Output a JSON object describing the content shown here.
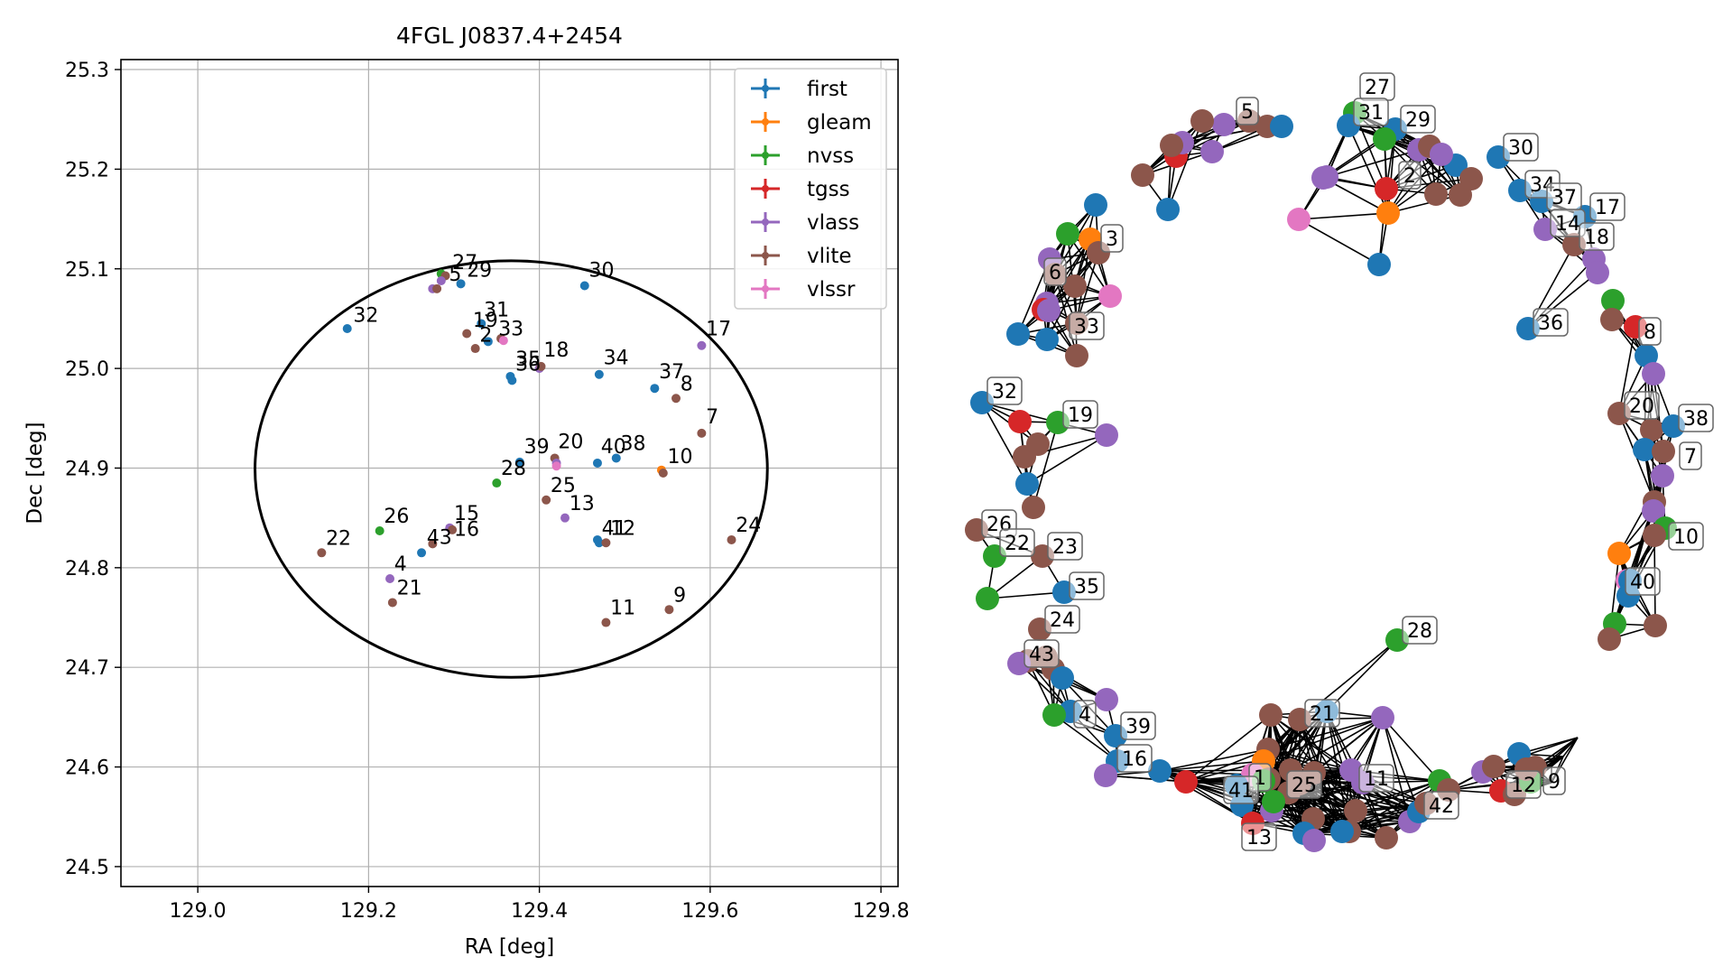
{
  "chart_data": [
    {
      "type": "scatter",
      "title": "4FGL J0837.4+2454",
      "xlabel": "RA [deg]",
      "ylabel": "Dec [deg]",
      "xlim": [
        128.91,
        129.82
      ],
      "ylim": [
        24.48,
        25.31
      ],
      "xticks": [
        129.0,
        129.2,
        129.4,
        129.6,
        129.8
      ],
      "xtick_labels": [
        "129.0",
        "129.2",
        "129.4",
        "129.6",
        "129.8"
      ],
      "yticks": [
        24.5,
        24.6,
        24.7,
        24.8,
        24.9,
        25.0,
        25.1,
        25.2,
        25.3
      ],
      "ytick_labels": [
        "24.5",
        "24.6",
        "24.7",
        "24.8",
        "24.9",
        "25.0",
        "25.1",
        "25.2",
        "25.3"
      ],
      "grid": true,
      "legend_position": "top-right",
      "ellipse": {
        "center": [
          129.367,
          24.899
        ],
        "ra_semi_axis": 0.3,
        "dec_semi_axis": 0.209
      },
      "series": [
        {
          "name": "first",
          "color": "#1f77b4"
        },
        {
          "name": "gleam",
          "color": "#ff7f0e"
        },
        {
          "name": "nvss",
          "color": "#2ca02c"
        },
        {
          "name": "tgss",
          "color": "#d62728"
        },
        {
          "name": "vlass",
          "color": "#9467bd"
        },
        {
          "name": "vlite",
          "color": "#8c564b"
        },
        {
          "name": "vlssr",
          "color": "#e377c2"
        }
      ],
      "points": [
        {
          "x": 129.285,
          "y": 25.095,
          "s": "nvss"
        },
        {
          "x": 129.29,
          "y": 25.093,
          "s": "vlite"
        },
        {
          "x": 129.285,
          "y": 25.088,
          "s": "vlass"
        },
        {
          "x": 129.275,
          "y": 25.08,
          "s": "vlass"
        },
        {
          "x": 129.28,
          "y": 25.08,
          "s": "vlite"
        },
        {
          "x": 129.308,
          "y": 25.085,
          "s": "first"
        },
        {
          "x": 129.175,
          "y": 25.04,
          "s": "first"
        },
        {
          "x": 129.453,
          "y": 25.083,
          "s": "first"
        },
        {
          "x": 129.315,
          "y": 25.035,
          "s": "vlite"
        },
        {
          "x": 129.332,
          "y": 25.045,
          "s": "first"
        },
        {
          "x": 129.34,
          "y": 25.027,
          "s": "first"
        },
        {
          "x": 129.325,
          "y": 25.02,
          "s": "vlite"
        },
        {
          "x": 129.355,
          "y": 25.03,
          "s": "vlite"
        },
        {
          "x": 129.358,
          "y": 25.028,
          "s": "vlssr"
        },
        {
          "x": 129.4,
          "y": 25.0,
          "s": "vlass"
        },
        {
          "x": 129.402,
          "y": 25.002,
          "s": "vlite"
        },
        {
          "x": 129.366,
          "y": 24.992,
          "s": "first"
        },
        {
          "x": 129.368,
          "y": 24.988,
          "s": "first"
        },
        {
          "x": 129.47,
          "y": 24.994,
          "s": "first"
        },
        {
          "x": 129.59,
          "y": 25.023,
          "s": "vlass"
        },
        {
          "x": 129.535,
          "y": 24.98,
          "s": "first"
        },
        {
          "x": 129.56,
          "y": 24.97,
          "s": "vlite"
        },
        {
          "x": 129.59,
          "y": 24.935,
          "s": "vlite"
        },
        {
          "x": 129.377,
          "y": 24.906,
          "s": "first"
        },
        {
          "x": 129.418,
          "y": 24.91,
          "s": "vlite"
        },
        {
          "x": 129.42,
          "y": 24.905,
          "s": "vlass"
        },
        {
          "x": 129.42,
          "y": 24.902,
          "s": "vlssr"
        },
        {
          "x": 129.468,
          "y": 24.905,
          "s": "first"
        },
        {
          "x": 129.49,
          "y": 24.91,
          "s": "first"
        },
        {
          "x": 129.543,
          "y": 24.898,
          "s": "gleam"
        },
        {
          "x": 129.545,
          "y": 24.895,
          "s": "vlite"
        },
        {
          "x": 129.35,
          "y": 24.885,
          "s": "nvss"
        },
        {
          "x": 129.408,
          "y": 24.868,
          "s": "vlite"
        },
        {
          "x": 129.43,
          "y": 24.85,
          "s": "vlass"
        },
        {
          "x": 129.213,
          "y": 24.837,
          "s": "nvss"
        },
        {
          "x": 129.295,
          "y": 24.84,
          "s": "vlass"
        },
        {
          "x": 129.298,
          "y": 24.838,
          "s": "vlite"
        },
        {
          "x": 129.275,
          "y": 24.824,
          "s": "vlite"
        },
        {
          "x": 129.262,
          "y": 24.815,
          "s": "first"
        },
        {
          "x": 129.145,
          "y": 24.815,
          "s": "vlite"
        },
        {
          "x": 129.225,
          "y": 24.789,
          "s": "vlass"
        },
        {
          "x": 129.228,
          "y": 24.765,
          "s": "vlite"
        },
        {
          "x": 129.468,
          "y": 24.828,
          "s": "first"
        },
        {
          "x": 129.47,
          "y": 24.825,
          "s": "first"
        },
        {
          "x": 129.478,
          "y": 24.825,
          "s": "vlite"
        },
        {
          "x": 129.625,
          "y": 24.828,
          "s": "vlite"
        },
        {
          "x": 129.478,
          "y": 24.745,
          "s": "vlite"
        },
        {
          "x": 129.552,
          "y": 24.758,
          "s": "vlite"
        }
      ],
      "labels": [
        {
          "text": "27",
          "x": 129.298,
          "y": 25.1
        },
        {
          "text": "5",
          "x": 129.294,
          "y": 25.088
        },
        {
          "text": "29",
          "x": 129.315,
          "y": 25.092
        },
        {
          "text": "30",
          "x": 129.458,
          "y": 25.092
        },
        {
          "text": "32",
          "x": 129.182,
          "y": 25.047
        },
        {
          "text": "31",
          "x": 129.335,
          "y": 25.052
        },
        {
          "text": "19",
          "x": 129.322,
          "y": 25.042
        },
        {
          "text": "33",
          "x": 129.352,
          "y": 25.033
        },
        {
          "text": "2",
          "x": 129.33,
          "y": 25.027
        },
        {
          "text": "18",
          "x": 129.405,
          "y": 25.012
        },
        {
          "text": "35",
          "x": 129.372,
          "y": 25.003
        },
        {
          "text": "36",
          "x": 129.372,
          "y": 24.998
        },
        {
          "text": "34",
          "x": 129.475,
          "y": 25.004
        },
        {
          "text": "17",
          "x": 129.595,
          "y": 25.033
        },
        {
          "text": "37",
          "x": 129.54,
          "y": 24.99
        },
        {
          "text": "8",
          "x": 129.565,
          "y": 24.978
        },
        {
          "text": "7",
          "x": 129.595,
          "y": 24.945
        },
        {
          "text": "39",
          "x": 129.382,
          "y": 24.915
        },
        {
          "text": "20",
          "x": 129.422,
          "y": 24.92
        },
        {
          "text": "40",
          "x": 129.472,
          "y": 24.915
        },
        {
          "text": "38",
          "x": 129.495,
          "y": 24.918
        },
        {
          "text": "10",
          "x": 129.55,
          "y": 24.905
        },
        {
          "text": "28",
          "x": 129.355,
          "y": 24.893
        },
        {
          "text": "25",
          "x": 129.413,
          "y": 24.876
        },
        {
          "text": "13",
          "x": 129.435,
          "y": 24.858
        },
        {
          "text": "26",
          "x": 129.218,
          "y": 24.845
        },
        {
          "text": "15",
          "x": 129.3,
          "y": 24.848
        },
        {
          "text": "16",
          "x": 129.3,
          "y": 24.832
        },
        {
          "text": "43",
          "x": 129.268,
          "y": 24.824
        },
        {
          "text": "22",
          "x": 129.15,
          "y": 24.823
        },
        {
          "text": "4",
          "x": 129.23,
          "y": 24.797
        },
        {
          "text": "21",
          "x": 129.233,
          "y": 24.773
        },
        {
          "text": "41",
          "x": 129.473,
          "y": 24.833
        },
        {
          "text": "12",
          "x": 129.483,
          "y": 24.833
        },
        {
          "text": "24",
          "x": 129.63,
          "y": 24.836
        },
        {
          "text": "11",
          "x": 129.483,
          "y": 24.753
        },
        {
          "text": "9",
          "x": 129.557,
          "y": 24.766
        }
      ]
    },
    {
      "type": "network",
      "nodes": [
        {
          "s": "vlass",
          "label": "5"
        },
        {
          "s": "vlite"
        },
        {
          "s": "vlite"
        },
        {
          "s": "vlass"
        },
        {
          "s": "first"
        },
        {
          "s": "vlite"
        },
        {
          "s": "tgss"
        },
        {
          "s": "vlass"
        },
        {
          "s": "vlite"
        },
        {
          "s": "first"
        },
        {
          "s": "vlite"
        },
        {
          "s": "nvss",
          "label": "27"
        },
        {
          "s": "first",
          "label": "31"
        },
        {
          "s": "first",
          "label": "29"
        },
        {
          "s": "nvss"
        },
        {
          "s": "vlass"
        },
        {
          "s": "tgss",
          "label": "2"
        },
        {
          "s": "gleam"
        },
        {
          "s": "vlite"
        },
        {
          "s": "vlite"
        },
        {
          "s": "vlite"
        },
        {
          "s": "first"
        },
        {
          "s": "vlass"
        },
        {
          "s": "vlite"
        },
        {
          "s": "vlssr"
        },
        {
          "s": "first"
        },
        {
          "s": "vlass"
        },
        {
          "s": "vlass"
        },
        {
          "s": "first",
          "label": "30"
        },
        {
          "s": "first",
          "label": "34"
        },
        {
          "s": "first",
          "label": "37"
        },
        {
          "s": "vlass",
          "label": "14"
        },
        {
          "s": "first",
          "label": "17"
        },
        {
          "s": "vlite",
          "label": "18"
        },
        {
          "s": "vlass"
        },
        {
          "s": "vlass"
        },
        {
          "s": "first",
          "label": "36"
        },
        {
          "s": "first"
        },
        {
          "s": "nvss"
        },
        {
          "s": "gleam",
          "label": "3"
        },
        {
          "s": "vlite"
        },
        {
          "s": "vlass"
        },
        {
          "s": "vlite",
          "label": "6"
        },
        {
          "s": "vlssr"
        },
        {
          "s": "vlass"
        },
        {
          "s": "tgss"
        },
        {
          "s": "vlite"
        },
        {
          "s": "vlite",
          "label": "33"
        },
        {
          "s": "first"
        },
        {
          "s": "vlite"
        },
        {
          "s": "first"
        },
        {
          "s": "vlass"
        },
        {
          "s": "first",
          "label": "32"
        },
        {
          "s": "tgss"
        },
        {
          "s": "nvss",
          "label": "19"
        },
        {
          "s": "vlass"
        },
        {
          "s": "vlite"
        },
        {
          "s": "vlite"
        },
        {
          "s": "first"
        },
        {
          "s": "vlite"
        },
        {
          "s": "vlite",
          "label": "26"
        },
        {
          "s": "nvss",
          "label": "22"
        },
        {
          "s": "vlite",
          "label": "23"
        },
        {
          "s": "first",
          "label": "35"
        },
        {
          "s": "nvss"
        },
        {
          "s": "nvss"
        },
        {
          "s": "vlite"
        },
        {
          "s": "tgss",
          "label": "8"
        },
        {
          "s": "first"
        },
        {
          "s": "vlass"
        },
        {
          "s": "vlite",
          "label": "20"
        },
        {
          "s": "vlite"
        },
        {
          "s": "first",
          "label": "38"
        },
        {
          "s": "first"
        },
        {
          "s": "vlite",
          "label": "7"
        },
        {
          "s": "vlass"
        },
        {
          "s": "vlite"
        },
        {
          "s": "vlass"
        },
        {
          "s": "nvss"
        },
        {
          "s": "vlite",
          "label": "10"
        },
        {
          "s": "gleam"
        },
        {
          "s": "vlssr",
          "label": "40"
        },
        {
          "s": "first"
        },
        {
          "s": "first"
        },
        {
          "s": "nvss"
        },
        {
          "s": "vlite"
        },
        {
          "s": "vlite"
        },
        {
          "s": "vlite",
          "label": "24"
        },
        {
          "s": "vlite"
        },
        {
          "s": "vlite"
        },
        {
          "s": "vlass",
          "label": "43"
        },
        {
          "s": "vlite"
        },
        {
          "s": "first"
        },
        {
          "s": "first",
          "label": "4"
        },
        {
          "s": "nvss"
        },
        {
          "s": "vlass"
        },
        {
          "s": "first",
          "label": "39"
        },
        {
          "s": "first",
          "label": "16"
        },
        {
          "s": "vlass"
        },
        {
          "s": "first"
        },
        {
          "s": "tgss"
        },
        {
          "s": "nvss",
          "label": "28"
        },
        {
          "s": "first"
        },
        {
          "s": "vlass"
        },
        {
          "s": "vlite",
          "label": "21"
        },
        {
          "s": "vlite"
        },
        {
          "s": "vlite"
        },
        {
          "s": "gleam"
        },
        {
          "s": "vlssr",
          "label": "1"
        },
        {
          "s": "vlite"
        },
        {
          "s": "vlite"
        },
        {
          "s": "vlite"
        },
        {
          "s": "vlass"
        },
        {
          "s": "nvss"
        },
        {
          "s": "vlite",
          "label": "25"
        },
        {
          "s": "first",
          "label": "41"
        },
        {
          "s": "vlite"
        },
        {
          "s": "first"
        },
        {
          "s": "vlass"
        },
        {
          "s": "tgss",
          "label": "13"
        },
        {
          "s": "vlite"
        },
        {
          "s": "vlite"
        },
        {
          "s": "vlass"
        },
        {
          "s": "first",
          "label": "42"
        },
        {
          "s": "vlass",
          "label": "11"
        },
        {
          "s": "vlite"
        },
        {
          "s": "nvss"
        },
        {
          "s": "vlite"
        },
        {
          "s": "first"
        },
        {
          "s": "vlite"
        },
        {
          "s": "first"
        },
        {
          "s": "nvss"
        },
        {
          "s": "vlass"
        },
        {
          "s": "vlite"
        },
        {
          "s": "vlass"
        },
        {
          "s": "tgss",
          "label": "12"
        },
        {
          "s": "vlite"
        },
        {
          "s": "vlite"
        },
        {
          "s": "first"
        },
        {
          "s": "vlite"
        },
        {
          "s": "nvss",
          "label": "9"
        },
        {
          "s": "vlite"
        }
      ]
    }
  ]
}
